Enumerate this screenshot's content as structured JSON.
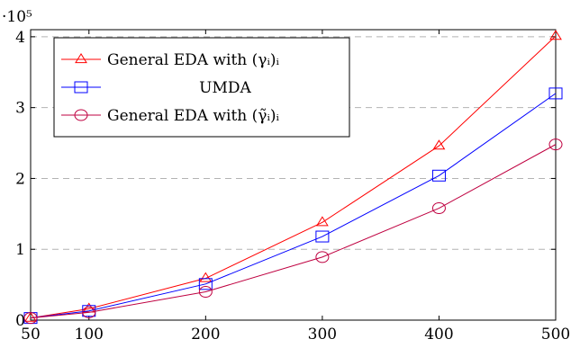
{
  "chart_data": {
    "type": "line",
    "x": [
      50,
      100,
      200,
      300,
      400,
      500
    ],
    "xticks": [
      "50",
      "100",
      "200",
      "300",
      "400",
      "500"
    ],
    "yticks": [
      "0",
      "1",
      "2",
      "3",
      "4"
    ],
    "y_scale_label": "·10⁵",
    "xlim": [
      50,
      500
    ],
    "ylim": [
      0,
      4.1
    ],
    "grid": "horizontal dashed",
    "legend_position": "top-left",
    "series": [
      {
        "name": "General EDA with (γᵢ)ᵢ",
        "marker": "triangle",
        "color": "#ff0000",
        "values": [
          0.03,
          0.16,
          0.59,
          1.38,
          2.46,
          4.01
        ]
      },
      {
        "name": "UMDA",
        "marker": "square",
        "color": "#0000ff",
        "values": [
          0.03,
          0.13,
          0.51,
          1.18,
          2.04,
          3.2
        ]
      },
      {
        "name": "General EDA with (γ̃ᵢ)ᵢ",
        "marker": "circle",
        "color": "#bf0040",
        "values": [
          0.03,
          0.11,
          0.4,
          0.89,
          1.58,
          2.48
        ]
      }
    ]
  }
}
